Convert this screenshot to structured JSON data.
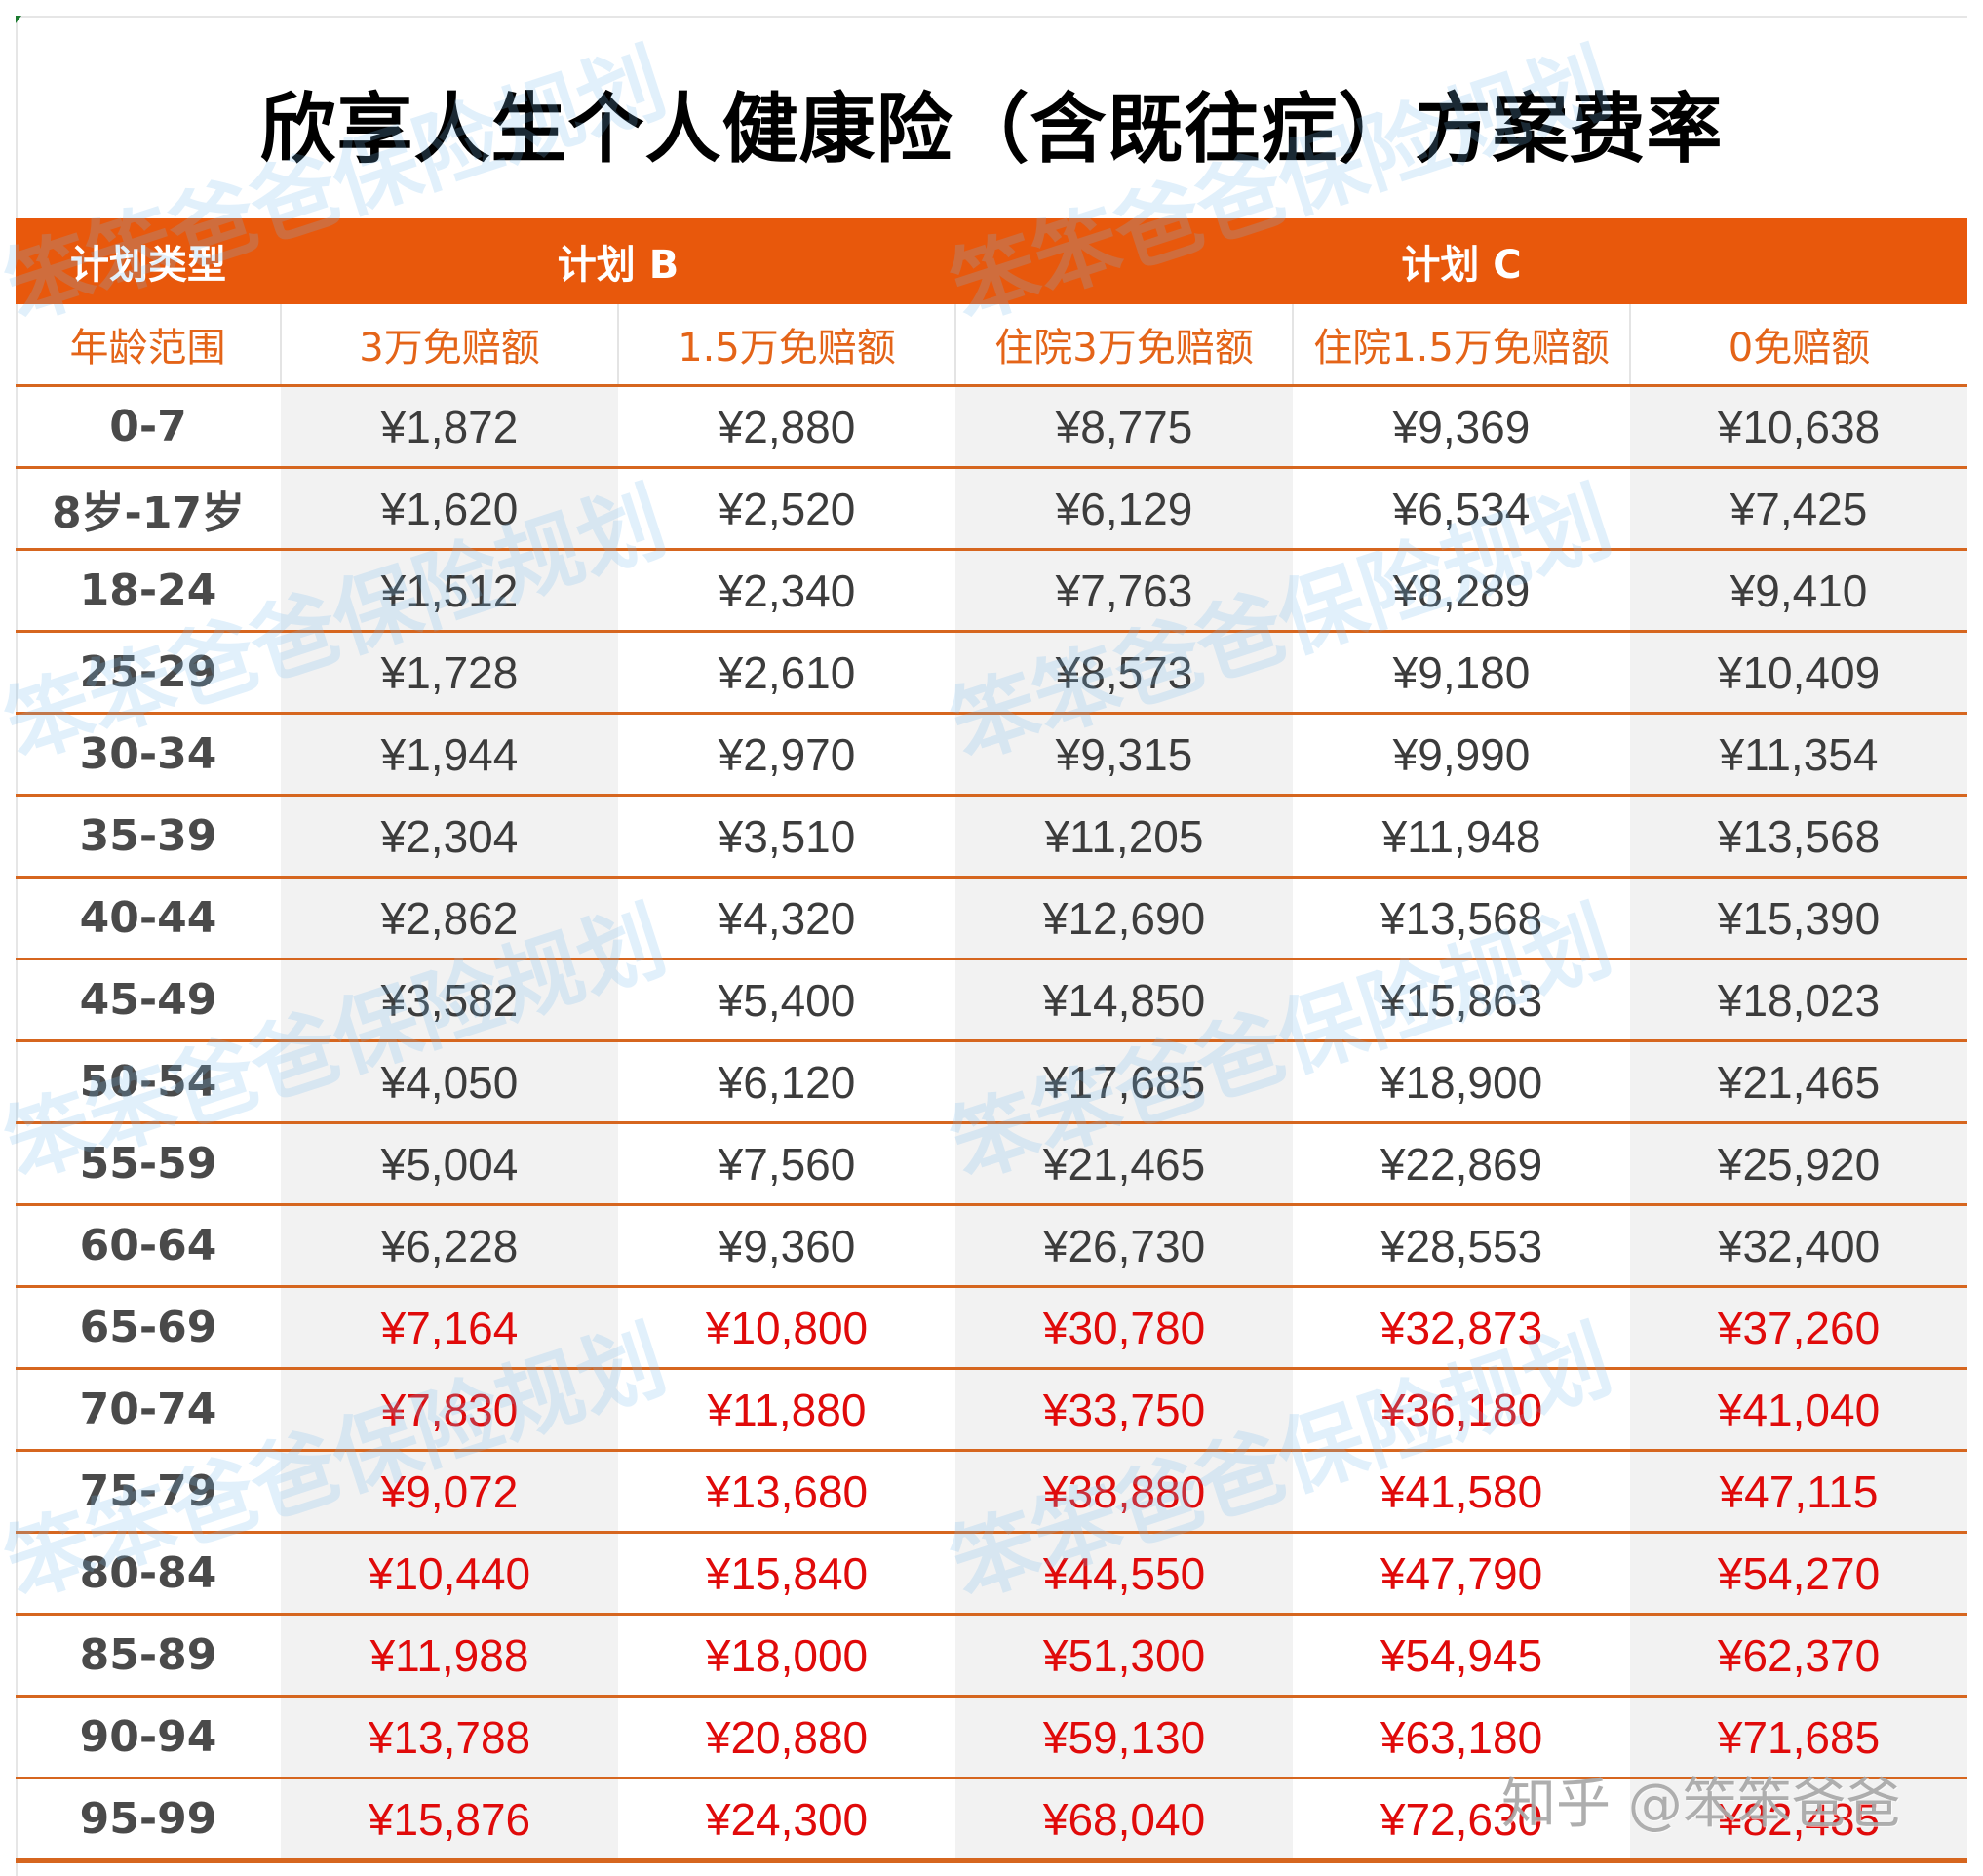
{
  "title": "欣享人生个人健康险（含既往症）方案费率",
  "header": {
    "plan_type_label": "计划类型",
    "plan_b_label": "计划 B",
    "plan_c_label": "计划 C",
    "age_range_label": "年龄范围",
    "columns": [
      "3万免赔额",
      "1.5万免赔额",
      "住院3万免赔额",
      "住院1.5万免赔额",
      "0免赔额"
    ]
  },
  "colors": {
    "header_orange": "#e8580c",
    "subheader_text": "#e46418",
    "row_rule": "#d6661f",
    "shade": "#f2f2f2",
    "normal_text": "#3c3c3c",
    "elder_text": "#e00a0a"
  },
  "rows": [
    {
      "age": "0-7",
      "values": [
        "¥1,872",
        "¥2,880",
        "¥8,775",
        "¥9,369",
        "¥10,638"
      ],
      "highlight": false
    },
    {
      "age": "8岁-17岁",
      "values": [
        "¥1,620",
        "¥2,520",
        "¥6,129",
        "¥6,534",
        "¥7,425"
      ],
      "highlight": false
    },
    {
      "age": "18-24",
      "values": [
        "¥1,512",
        "¥2,340",
        "¥7,763",
        "¥8,289",
        "¥9,410"
      ],
      "highlight": false
    },
    {
      "age": "25-29",
      "values": [
        "¥1,728",
        "¥2,610",
        "¥8,573",
        "¥9,180",
        "¥10,409"
      ],
      "highlight": false
    },
    {
      "age": "30-34",
      "values": [
        "¥1,944",
        "¥2,970",
        "¥9,315",
        "¥9,990",
        "¥11,354"
      ],
      "highlight": false
    },
    {
      "age": "35-39",
      "values": [
        "¥2,304",
        "¥3,510",
        "¥11,205",
        "¥11,948",
        "¥13,568"
      ],
      "highlight": false
    },
    {
      "age": "40-44",
      "values": [
        "¥2,862",
        "¥4,320",
        "¥12,690",
        "¥13,568",
        "¥15,390"
      ],
      "highlight": false
    },
    {
      "age": "45-49",
      "values": [
        "¥3,582",
        "¥5,400",
        "¥14,850",
        "¥15,863",
        "¥18,023"
      ],
      "highlight": false
    },
    {
      "age": "50-54",
      "values": [
        "¥4,050",
        "¥6,120",
        "¥17,685",
        "¥18,900",
        "¥21,465"
      ],
      "highlight": false
    },
    {
      "age": "55-59",
      "values": [
        "¥5,004",
        "¥7,560",
        "¥21,465",
        "¥22,869",
        "¥25,920"
      ],
      "highlight": false
    },
    {
      "age": "60-64",
      "values": [
        "¥6,228",
        "¥9,360",
        "¥26,730",
        "¥28,553",
        "¥32,400"
      ],
      "highlight": false
    },
    {
      "age": "65-69",
      "values": [
        "¥7,164",
        "¥10,800",
        "¥30,780",
        "¥32,873",
        "¥37,260"
      ],
      "highlight": true
    },
    {
      "age": "70-74",
      "values": [
        "¥7,830",
        "¥11,880",
        "¥33,750",
        "¥36,180",
        "¥41,040"
      ],
      "highlight": true
    },
    {
      "age": "75-79",
      "values": [
        "¥9,072",
        "¥13,680",
        "¥38,880",
        "¥41,580",
        "¥47,115"
      ],
      "highlight": true
    },
    {
      "age": "80-84",
      "values": [
        "¥10,440",
        "¥15,840",
        "¥44,550",
        "¥47,790",
        "¥54,270"
      ],
      "highlight": true
    },
    {
      "age": "85-89",
      "values": [
        "¥11,988",
        "¥18,000",
        "¥51,300",
        "¥54,945",
        "¥62,370"
      ],
      "highlight": true
    },
    {
      "age": "90-94",
      "values": [
        "¥13,788",
        "¥20,880",
        "¥59,130",
        "¥63,180",
        "¥71,685"
      ],
      "highlight": true
    },
    {
      "age": "95-99",
      "values": [
        "¥15,876",
        "¥24,300",
        "¥68,040",
        "¥72,630",
        "¥82,485"
      ],
      "highlight": true
    }
  ],
  "watermark_text": "笨笨爸爸保险规划",
  "credit": "知乎 @笨笨爸爸"
}
